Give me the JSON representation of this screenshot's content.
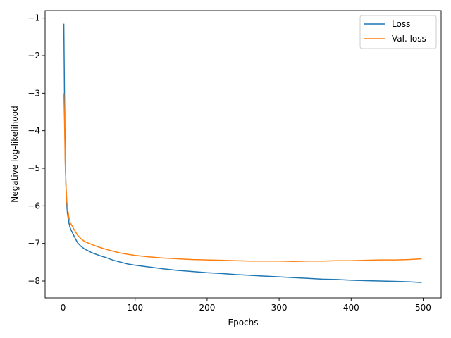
{
  "chart_data": {
    "type": "line",
    "title": "",
    "xlabel": "Epochs",
    "ylabel": "Negative log-likelihood",
    "xlim": [
      -25,
      525
    ],
    "ylim": [
      -8.45,
      -0.8
    ],
    "xticks": [
      0,
      100,
      200,
      300,
      400,
      500
    ],
    "yticks": [
      -8,
      -7,
      -6,
      -5,
      -4,
      -3,
      -2,
      -1
    ],
    "x_tick_labels": [
      "0",
      "100",
      "200",
      "300",
      "400",
      "500"
    ],
    "y_tick_labels": [
      "−8",
      "−7",
      "−6",
      "−5",
      "−4",
      "−3",
      "−2",
      "−1"
    ],
    "grid": false,
    "legend_position": "top-right",
    "series": [
      {
        "name": "Loss",
        "color": "#1f77b4",
        "points": [
          [
            1,
            -1.15
          ],
          [
            2,
            -3.2
          ],
          [
            3,
            -4.8
          ],
          [
            4,
            -5.5
          ],
          [
            5,
            -5.95
          ],
          [
            6,
            -6.2
          ],
          [
            8,
            -6.45
          ],
          [
            10,
            -6.6
          ],
          [
            15,
            -6.8
          ],
          [
            20,
            -6.98
          ],
          [
            25,
            -7.08
          ],
          [
            30,
            -7.15
          ],
          [
            40,
            -7.25
          ],
          [
            50,
            -7.32
          ],
          [
            60,
            -7.38
          ],
          [
            70,
            -7.45
          ],
          [
            80,
            -7.5
          ],
          [
            90,
            -7.55
          ],
          [
            100,
            -7.58
          ],
          [
            120,
            -7.63
          ],
          [
            140,
            -7.68
          ],
          [
            160,
            -7.72
          ],
          [
            180,
            -7.75
          ],
          [
            200,
            -7.78
          ],
          [
            220,
            -7.8
          ],
          [
            240,
            -7.83
          ],
          [
            260,
            -7.85
          ],
          [
            280,
            -7.87
          ],
          [
            300,
            -7.89
          ],
          [
            320,
            -7.91
          ],
          [
            340,
            -7.93
          ],
          [
            360,
            -7.95
          ],
          [
            380,
            -7.96
          ],
          [
            400,
            -7.98
          ],
          [
            420,
            -7.99
          ],
          [
            440,
            -8.0
          ],
          [
            460,
            -8.01
          ],
          [
            480,
            -8.02
          ],
          [
            498,
            -8.04
          ]
        ]
      },
      {
        "name": "Val. loss",
        "color": "#ff7f0e",
        "points": [
          [
            1,
            -3.0
          ],
          [
            2,
            -3.8
          ],
          [
            3,
            -4.9
          ],
          [
            4,
            -5.45
          ],
          [
            5,
            -5.85
          ],
          [
            6,
            -6.05
          ],
          [
            8,
            -6.3
          ],
          [
            10,
            -6.45
          ],
          [
            15,
            -6.62
          ],
          [
            20,
            -6.78
          ],
          [
            25,
            -6.88
          ],
          [
            30,
            -6.95
          ],
          [
            40,
            -7.03
          ],
          [
            50,
            -7.1
          ],
          [
            60,
            -7.16
          ],
          [
            70,
            -7.21
          ],
          [
            80,
            -7.26
          ],
          [
            90,
            -7.29
          ],
          [
            100,
            -7.32
          ],
          [
            120,
            -7.36
          ],
          [
            140,
            -7.39
          ],
          [
            160,
            -7.41
          ],
          [
            180,
            -7.43
          ],
          [
            200,
            -7.44
          ],
          [
            220,
            -7.45
          ],
          [
            240,
            -7.46
          ],
          [
            260,
            -7.47
          ],
          [
            280,
            -7.47
          ],
          [
            300,
            -7.47
          ],
          [
            320,
            -7.48
          ],
          [
            340,
            -7.47
          ],
          [
            360,
            -7.47
          ],
          [
            380,
            -7.46
          ],
          [
            400,
            -7.46
          ],
          [
            420,
            -7.45
          ],
          [
            440,
            -7.44
          ],
          [
            460,
            -7.44
          ],
          [
            480,
            -7.43
          ],
          [
            498,
            -7.41
          ]
        ]
      }
    ]
  }
}
